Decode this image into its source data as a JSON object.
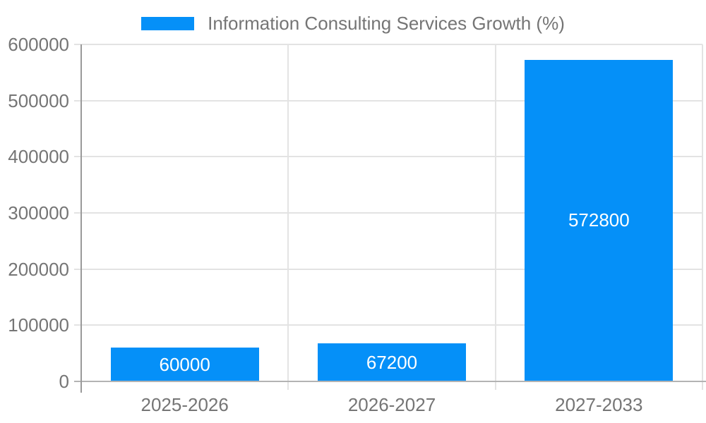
{
  "chart_data": {
    "type": "bar",
    "title": "Information Consulting Services Growth (%)",
    "categories": [
      "2025-2026",
      "2026-2027",
      "2027-2033"
    ],
    "values": [
      60000,
      67200,
      572800
    ],
    "value_labels": [
      "60000",
      "67200",
      "572800"
    ],
    "xlabel": "",
    "ylabel": "",
    "ylim": [
      0,
      600000
    ],
    "yticks": [
      0,
      100000,
      200000,
      300000,
      400000,
      500000,
      600000
    ],
    "ytick_labels": [
      "0",
      "100000",
      "200000",
      "300000",
      "400000",
      "500000",
      "600000"
    ],
    "grid": true,
    "legend_position": "top-center",
    "value_label_position": "inside-center",
    "colors": {
      "bar": "#0590f8",
      "axis_text": "#757575",
      "legend_text": "#757575",
      "value_text": "#ffffff",
      "gridline": "#e3e3e3",
      "baseline": "#b3b3b3",
      "axis_line": "#9a9a9a",
      "background": "#ffffff"
    }
  }
}
